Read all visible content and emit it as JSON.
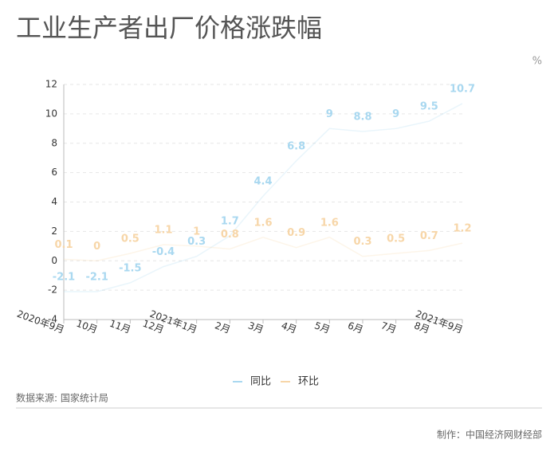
{
  "chart_data": {
    "type": "line",
    "title": "工业生产者出厂价格涨跌幅",
    "y_unit": "%",
    "categories": [
      "2020年9月",
      "10月",
      "11月",
      "12月",
      "2021年1月",
      "2月",
      "3月",
      "4月",
      "5月",
      "6月",
      "7月",
      "8月",
      "2021年9月"
    ],
    "series": [
      {
        "name": "同比",
        "color": "#a9d8f0",
        "values": [
          -2.1,
          -2.1,
          -1.5,
          -0.4,
          0.3,
          1.7,
          4.4,
          6.8,
          9,
          8.8,
          9,
          9.5,
          10.7
        ]
      },
      {
        "name": "环比",
        "color": "#f7d6a8",
        "values": [
          0.1,
          0,
          0.5,
          1.1,
          1,
          0.8,
          1.6,
          0.9,
          1.6,
          0.3,
          0.5,
          0.7,
          1.2
        ]
      }
    ],
    "ylim": [
      -4,
      12
    ],
    "yticks": [
      -4,
      -2,
      0,
      2,
      4,
      6,
      8,
      10,
      12
    ],
    "grid": true,
    "source": "数据来源: 国家统计局",
    "credit": "制作：中国经济网财经部"
  }
}
